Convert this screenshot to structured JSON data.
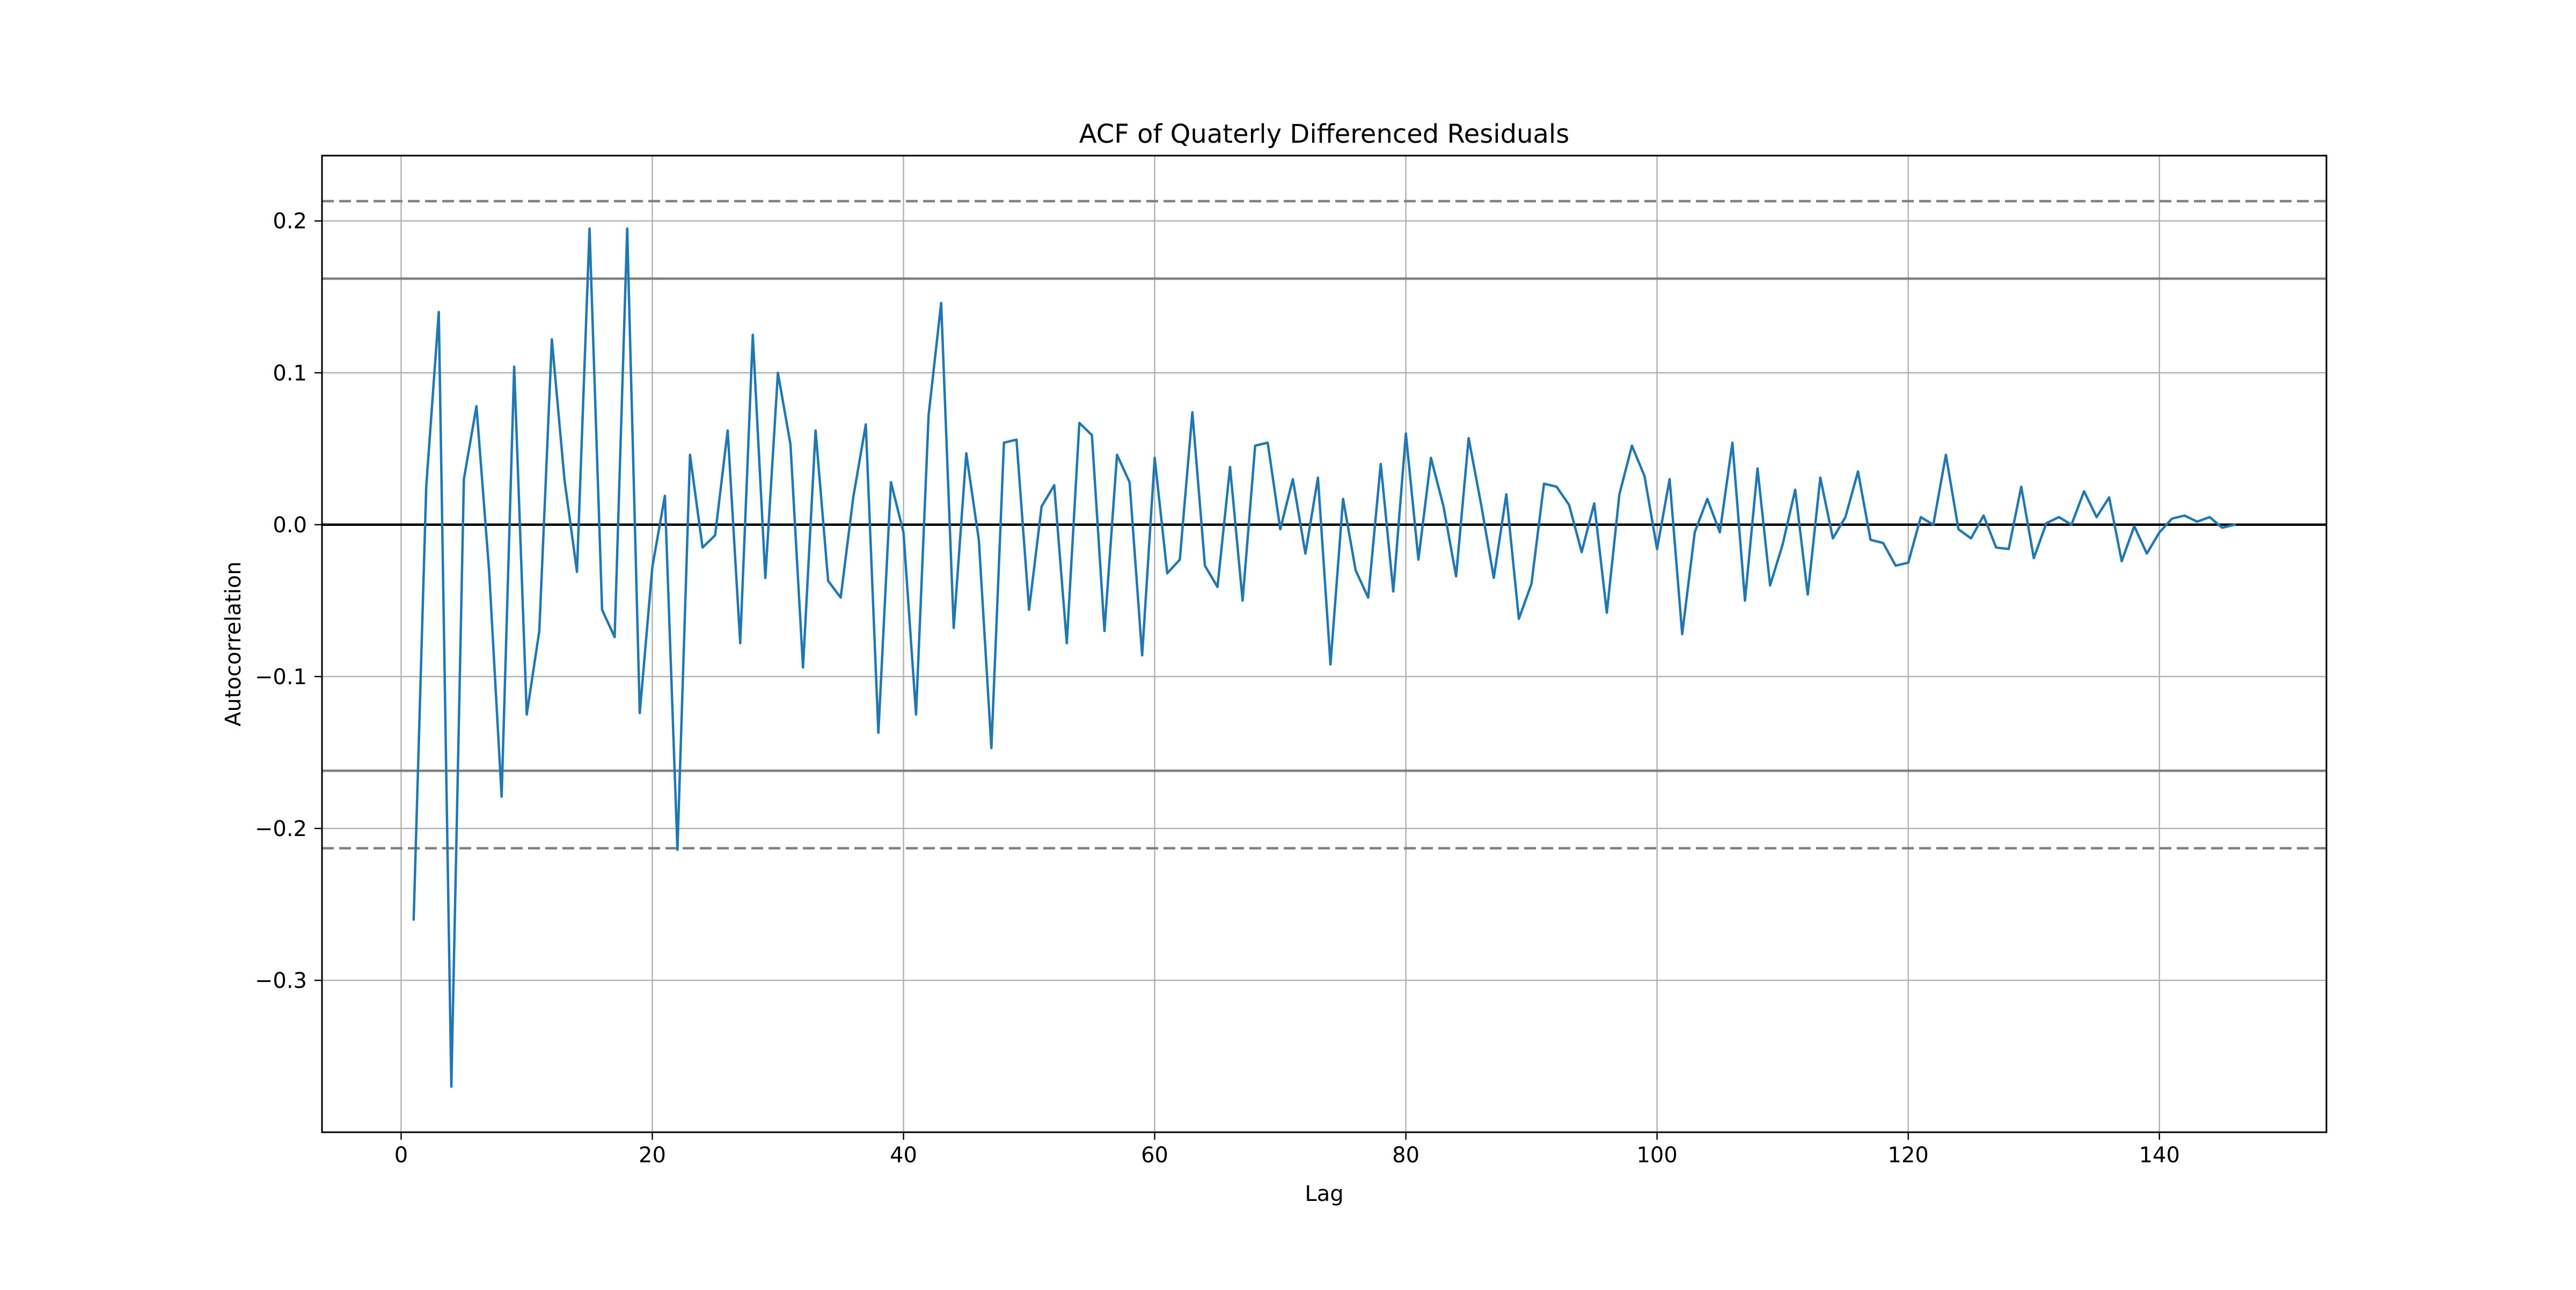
{
  "chart_data": {
    "type": "line",
    "title": "ACF of Quaterly Differenced Residuals",
    "xlabel": "Lag",
    "ylabel": "Autocorrelation",
    "xlim": [
      -6.3,
      153.3
    ],
    "ylim": [
      -0.4,
      0.243
    ],
    "xticks": [
      0,
      20,
      40,
      60,
      80,
      100,
      120,
      140
    ],
    "xtick_labels": [
      "0",
      "20",
      "40",
      "60",
      "80",
      "100",
      "120",
      "140"
    ],
    "yticks": [
      -0.3,
      -0.2,
      -0.1,
      0.0,
      0.1,
      0.2
    ],
    "ytick_labels": [
      "−0.3",
      "−0.2",
      "−0.1",
      "0.0",
      "0.1",
      "0.2"
    ],
    "grid": true,
    "zero_line": 0.0,
    "confidence_bands": {
      "solid": [
        0.162,
        -0.162
      ],
      "dashed": [
        0.213,
        -0.213
      ],
      "color": "#808080"
    },
    "series": [
      {
        "color": "#1f77b4",
        "x": [
          1,
          2,
          3,
          4,
          5,
          6,
          7,
          8,
          9,
          10,
          11,
          12,
          13,
          14,
          15,
          16,
          17,
          18,
          19,
          20,
          21,
          22,
          23,
          24,
          25,
          26,
          27,
          28,
          29,
          30,
          31,
          32,
          33,
          34,
          35,
          36,
          37,
          38,
          39,
          40,
          41,
          42,
          43,
          44,
          45,
          46,
          47,
          48,
          49,
          50,
          51,
          52,
          53,
          54,
          55,
          56,
          57,
          58,
          59,
          60,
          61,
          62,
          63,
          64,
          65,
          66,
          67,
          68,
          69,
          70,
          71,
          72,
          73,
          74,
          75,
          76,
          77,
          78,
          79,
          80,
          81,
          82,
          83,
          84,
          85,
          86,
          87,
          88,
          89,
          90,
          91,
          92,
          93,
          94,
          95,
          96,
          97,
          98,
          99,
          100,
          101,
          102,
          103,
          104,
          105,
          106,
          107,
          108,
          109,
          110,
          111,
          112,
          113,
          114,
          115,
          116,
          117,
          118,
          119,
          120,
          121,
          122,
          123,
          124,
          125,
          126,
          127,
          128,
          129,
          130,
          131,
          132,
          133,
          134,
          135,
          136,
          137,
          138,
          139,
          140,
          141,
          142,
          143,
          144,
          145,
          146
        ],
        "values": [
          -0.26,
          0.025,
          0.14,
          -0.37,
          0.03,
          0.078,
          -0.03,
          -0.179,
          0.104,
          -0.125,
          -0.07,
          0.122,
          0.03,
          -0.031,
          0.195,
          -0.056,
          -0.074,
          0.195,
          -0.124,
          -0.028,
          0.019,
          -0.214,
          0.046,
          -0.015,
          -0.007,
          0.062,
          -0.078,
          0.125,
          -0.035,
          0.1,
          0.053,
          -0.094,
          0.062,
          -0.037,
          -0.048,
          0.018,
          0.066,
          -0.137,
          0.028,
          -0.005,
          -0.125,
          0.072,
          0.146,
          -0.068,
          0.047,
          -0.01,
          -0.147,
          0.054,
          0.056,
          -0.056,
          0.012,
          0.026,
          -0.078,
          0.067,
          0.059,
          -0.07,
          0.046,
          0.028,
          -0.086,
          0.044,
          -0.032,
          -0.023,
          0.074,
          -0.027,
          -0.041,
          0.038,
          -0.05,
          0.052,
          0.054,
          -0.003,
          0.03,
          -0.019,
          0.031,
          -0.092,
          0.017,
          -0.03,
          -0.048,
          0.04,
          -0.044,
          0.06,
          -0.023,
          0.044,
          0.012,
          -0.034,
          0.057,
          0.013,
          -0.035,
          0.02,
          -0.062,
          -0.039,
          0.027,
          0.025,
          0.013,
          -0.018,
          0.014,
          -0.058,
          0.02,
          0.052,
          0.032,
          -0.016,
          0.03,
          -0.072,
          -0.005,
          0.017,
          -0.005,
          0.054,
          -0.05,
          0.037,
          -0.04,
          -0.013,
          0.023,
          -0.046,
          0.031,
          -0.009,
          0.005,
          0.035,
          -0.01,
          -0.012,
          -0.027,
          -0.025,
          0.005,
          0.0,
          0.046,
          -0.003,
          -0.009,
          0.006,
          -0.015,
          -0.016,
          0.025,
          -0.022,
          0.001,
          0.005,
          0.0,
          0.022,
          0.005,
          0.018,
          -0.024,
          -0.001,
          -0.019,
          -0.005,
          0.004,
          0.006,
          0.002,
          0.005,
          -0.002,
          0.0
        ]
      }
    ]
  }
}
